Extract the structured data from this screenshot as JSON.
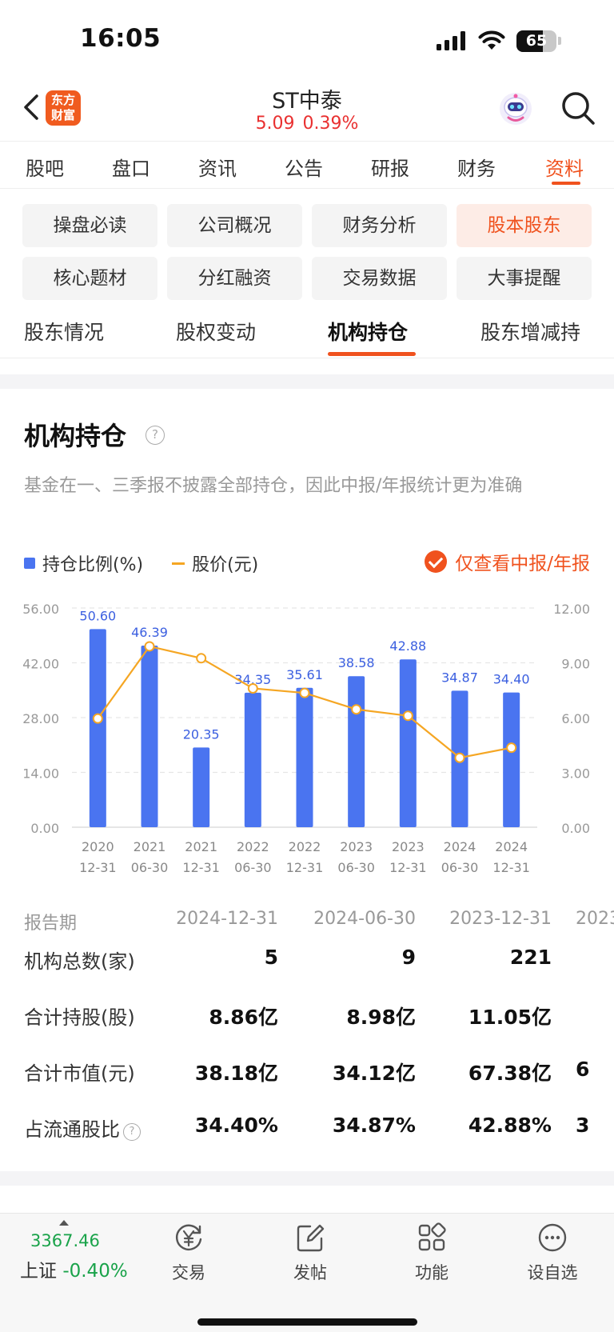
{
  "status_bar": {
    "time": "16:05",
    "battery": "65"
  },
  "header": {
    "brand_line1": "东方",
    "brand_line2": "财富",
    "stock_name": "ST中泰",
    "price": "5.09",
    "change_pct": "0.39%"
  },
  "main_tabs": [
    "股吧",
    "盘口",
    "资讯",
    "公告",
    "研报",
    "财务",
    "资料"
  ],
  "main_tab_active": "资料",
  "sub_nav": {
    "row1": [
      "操盘必读",
      "公司概况",
      "财务分析",
      "股本股东"
    ],
    "row2": [
      "核心题材",
      "分红融资",
      "交易数据",
      "大事提醒"
    ],
    "active": "股本股东"
  },
  "holder_tabs": [
    "股东情况",
    "股权变动",
    "机构持仓",
    "股东增减持"
  ],
  "holder_tab_active": "机构持仓",
  "section": {
    "title": "机构持仓",
    "note": "基金在一、三季报不披露全部持仓，因此中报/年报统计更为准确"
  },
  "legend": {
    "bar": "持仓比例(%)",
    "line": "股价(元)"
  },
  "filter": {
    "label": "仅查看中报/年报",
    "checked": true
  },
  "colors": {
    "accent": "#f0521e",
    "bar": "#4a74f0",
    "line": "#f5a623",
    "up": "#e93030",
    "down": "#1aa34a"
  },
  "chart_data": {
    "type": "bar",
    "categories": [
      [
        "2020",
        "12-31"
      ],
      [
        "2021",
        "06-30"
      ],
      [
        "2021",
        "12-31"
      ],
      [
        "2022",
        "06-30"
      ],
      [
        "2022",
        "12-31"
      ],
      [
        "2023",
        "06-30"
      ],
      [
        "2023",
        "12-31"
      ],
      [
        "2024",
        "06-30"
      ],
      [
        "2024",
        "12-31"
      ]
    ],
    "series": [
      {
        "name": "持仓比例(%)",
        "type": "bar",
        "axis": "left",
        "values": [
          50.6,
          46.39,
          20.35,
          34.35,
          35.61,
          38.58,
          42.88,
          34.87,
          34.4
        ]
      },
      {
        "name": "股价(元)",
        "type": "line",
        "axis": "right",
        "values": [
          5.95,
          9.9,
          9.25,
          7.6,
          7.35,
          6.45,
          6.1,
          3.8,
          4.35
        ]
      }
    ],
    "y_left": {
      "min": 0,
      "max": 56,
      "ticks": [
        "0.00",
        "14.00",
        "28.00",
        "42.00",
        "56.00"
      ]
    },
    "y_right": {
      "min": 0,
      "max": 12,
      "ticks": [
        "0.00",
        "3.00",
        "6.00",
        "9.00",
        "12.00"
      ]
    },
    "grid": true
  },
  "table": {
    "header_label": "报告期",
    "periods": [
      "2024-12-31",
      "2024-06-30",
      "2023-12-31",
      "2023"
    ],
    "rows": [
      {
        "label": "机构总数(家)",
        "values": [
          "5",
          "9",
          "221",
          ""
        ]
      },
      {
        "label": "合计持股(股)",
        "values": [
          "8.86亿",
          "8.98亿",
          "11.05亿",
          ""
        ]
      },
      {
        "label": "合计市值(元)",
        "values": [
          "38.18亿",
          "34.12亿",
          "67.38亿",
          "6"
        ]
      },
      {
        "label": "占流通股比",
        "values": [
          "34.40%",
          "34.87%",
          "42.88%",
          "3"
        ],
        "help": true
      }
    ]
  },
  "bottom_bar": {
    "index_value": "3367.46",
    "index_name": "上证",
    "index_change": "-0.40%",
    "items": [
      {
        "label": "交易",
        "icon": "trade-yen-icon"
      },
      {
        "label": "发帖",
        "icon": "edit-post-icon"
      },
      {
        "label": "功能",
        "icon": "grid-apps-icon"
      },
      {
        "label": "设自选",
        "icon": "more-dots-icon"
      }
    ]
  }
}
